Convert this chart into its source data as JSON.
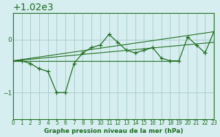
{
  "title": "Graphe pression niveau de la mer (hPa)",
  "bg_color": "#d6eef0",
  "grid_color": "#aacccc",
  "line_color": "#1a6b1a",
  "xlim": [
    0,
    23
  ],
  "ylim": [
    1018.5,
    1020.5
  ],
  "yticks": [
    1019,
    1020
  ],
  "xticks": [
    0,
    1,
    2,
    3,
    4,
    5,
    6,
    7,
    8,
    9,
    10,
    11,
    12,
    13,
    14,
    15,
    16,
    17,
    18,
    19,
    20,
    21,
    22,
    23
  ],
  "main_x": [
    0,
    1,
    2,
    3,
    4,
    5,
    6,
    7,
    8,
    9,
    10,
    11,
    12,
    13,
    14,
    15,
    16,
    17,
    18,
    19,
    20,
    21,
    22,
    23
  ],
  "main_y": [
    1019.6,
    1019.6,
    1019.55,
    1019.45,
    1019.4,
    1019.0,
    1019.0,
    1019.55,
    1019.75,
    1019.85,
    1019.9,
    1020.1,
    1019.95,
    1019.8,
    1019.75,
    1019.8,
    1019.85,
    1019.65,
    1019.6,
    1019.6,
    1020.05,
    1019.9,
    1019.75,
    1020.15
  ],
  "line1_x": [
    0,
    23
  ],
  "line1_y": [
    1019.6,
    1020.15
  ],
  "line2_x": [
    0,
    19
  ],
  "line2_y": [
    1019.6,
    1019.6
  ],
  "line3_x": [
    0,
    23
  ],
  "line3_y": [
    1019.6,
    1019.95
  ]
}
